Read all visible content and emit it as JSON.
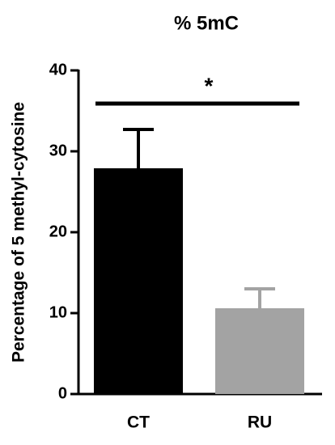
{
  "chart_data": {
    "type": "bar",
    "title": "% 5mC",
    "y_label": "Percentage of 5 methyl-cytosine",
    "categories": [
      "CT",
      "RU"
    ],
    "values": [
      27.9,
      10.6
    ],
    "errors": [
      4.8,
      2.4
    ],
    "colors": [
      "#000000",
      "#a3a3a3"
    ],
    "ylim": [
      0,
      40
    ],
    "yticks": [
      0,
      10,
      20,
      30,
      40
    ],
    "grid": false,
    "annotation": "*"
  }
}
